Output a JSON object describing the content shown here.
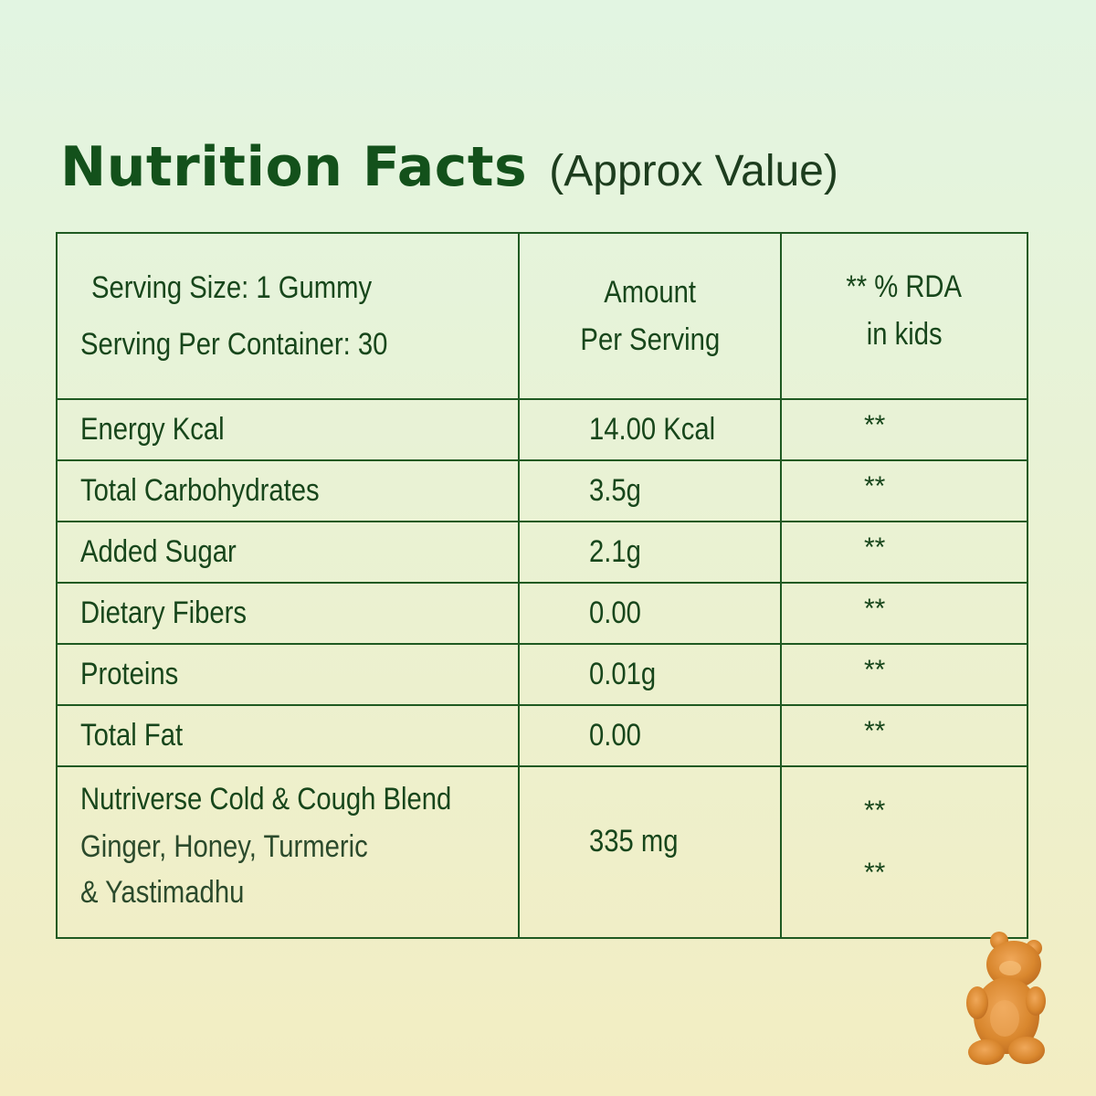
{
  "title": {
    "main": "Nutrition Facts",
    "sub": "(Approx Value)"
  },
  "header": {
    "serving_size": "Serving Size: 1 Gummy",
    "servings_per_container": "Serving Per Container: 30",
    "amount_line1": "Amount",
    "amount_line2": "Per Serving",
    "rda_line1": "** % RDA",
    "rda_line2": "in kids"
  },
  "rows": [
    {
      "label": "Energy Kcal",
      "amount": "14.00 Kcal",
      "rda": "**"
    },
    {
      "label": "Total Carbohydrates",
      "amount": "3.5g",
      "rda": "**"
    },
    {
      "label": "Added Sugar",
      "amount": "2.1g",
      "rda": "**"
    },
    {
      "label": "Dietary Fibers",
      "amount": "0.00",
      "rda": "**"
    },
    {
      "label": "Proteins",
      "amount": "0.01g",
      "rda": "**"
    },
    {
      "label": "Total Fat",
      "amount": "0.00",
      "rda": "**"
    }
  ],
  "blend": {
    "title": "Nutriverse Cold & Cough  Blend",
    "ingredients_line1": "Ginger, Honey, Turmeric",
    "ingredients_line2": "& Yastimadhu",
    "amount": "335 mg",
    "rda_1": "**",
    "rda_2": "**"
  },
  "decoration": {
    "icon": "gummy-bear-icon",
    "colors": {
      "primary": "#14501e",
      "bear": "#d9872e"
    }
  }
}
